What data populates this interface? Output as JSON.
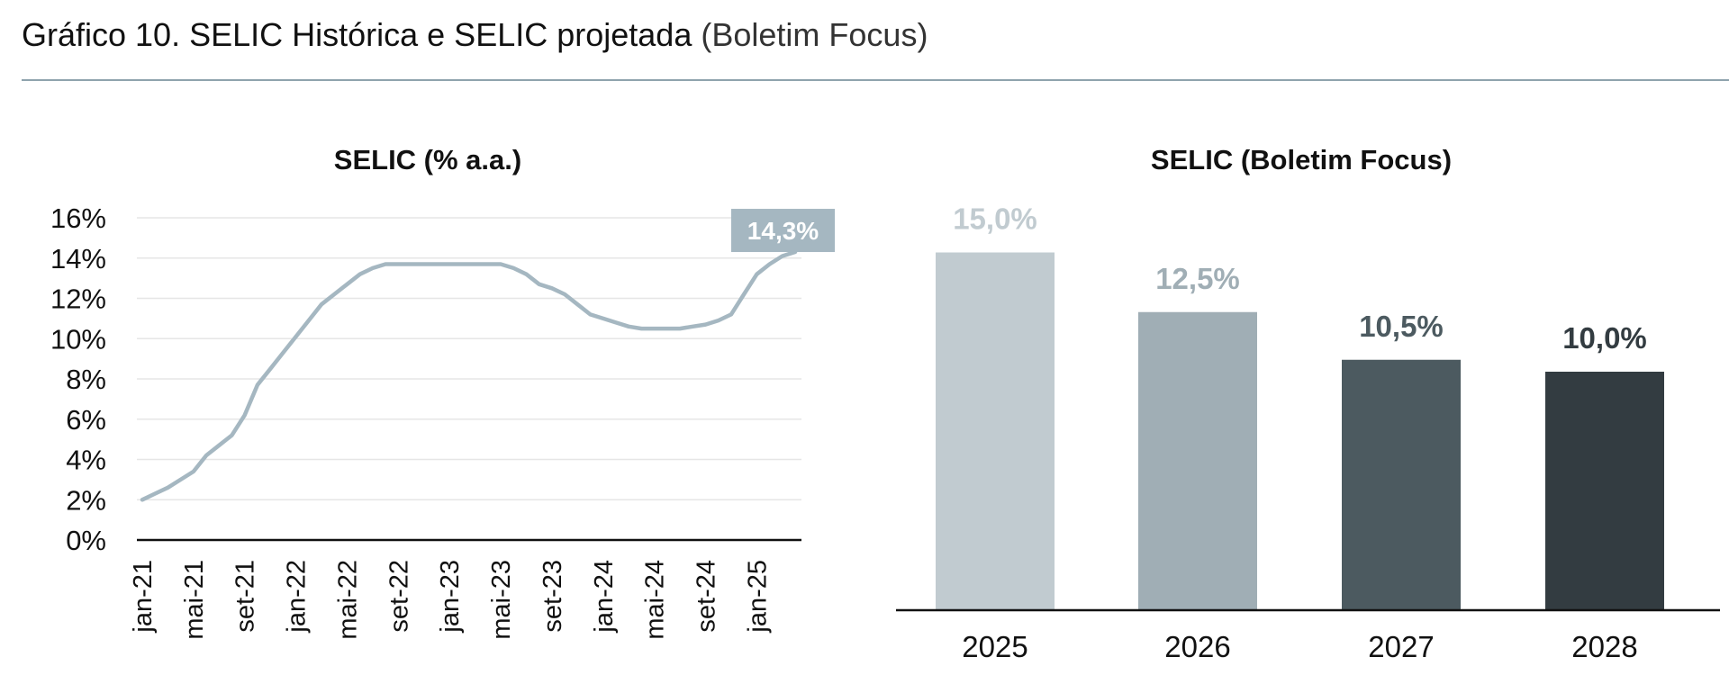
{
  "page": {
    "title_main": "Gráfico 10. SELIC Histórica e SELIC projetada",
    "title_sub": "(Boletim Focus)"
  },
  "colors": {
    "rule": "#8fa3ad",
    "line": "#a5b7c1",
    "callout": "#a5b7c1",
    "grid": "#e6e6e6",
    "bars": [
      "#c1cbd0",
      "#a0aeb5",
      "#4c5a60",
      "#333c41"
    ],
    "bar_labels": [
      "#c1cbd0",
      "#a0aeb5",
      "#4c5a60",
      "#333c41"
    ]
  },
  "chart_data": [
    {
      "type": "line",
      "title": "SELIC (% a.a.)",
      "xlabel": "",
      "ylabel": "",
      "ylim": [
        0,
        16
      ],
      "yticks": [
        "0%",
        "2%",
        "4%",
        "6%",
        "8%",
        "10%",
        "12%",
        "14%",
        "16%"
      ],
      "grid": true,
      "x_tick_labels": [
        "jan-21",
        "mai-21",
        "set-21",
        "jan-22",
        "mai-22",
        "set-22",
        "jan-23",
        "mai-23",
        "set-23",
        "jan-24",
        "mai-24",
        "set-24",
        "jan-25"
      ],
      "x": [
        "jan-21",
        "fev-21",
        "mar-21",
        "abr-21",
        "mai-21",
        "jun-21",
        "jul-21",
        "ago-21",
        "set-21",
        "out-21",
        "nov-21",
        "dez-21",
        "jan-22",
        "fev-22",
        "mar-22",
        "abr-22",
        "mai-22",
        "jun-22",
        "jul-22",
        "ago-22",
        "set-22",
        "out-22",
        "nov-22",
        "dez-22",
        "jan-23",
        "fev-23",
        "mar-23",
        "abr-23",
        "mai-23",
        "jun-23",
        "jul-23",
        "ago-23",
        "set-23",
        "out-23",
        "nov-23",
        "dez-23",
        "jan-24",
        "fev-24",
        "mar-24",
        "abr-24",
        "mai-24",
        "jun-24",
        "jul-24",
        "ago-24",
        "set-24",
        "out-24",
        "nov-24",
        "dez-24",
        "jan-25",
        "fev-25",
        "mar-25",
        "abr-25"
      ],
      "values": [
        2.0,
        2.3,
        2.6,
        3.0,
        3.4,
        4.2,
        4.7,
        5.2,
        6.2,
        7.7,
        8.5,
        9.3,
        10.1,
        10.9,
        11.7,
        12.2,
        12.7,
        13.2,
        13.5,
        13.7,
        13.7,
        13.7,
        13.7,
        13.7,
        13.7,
        13.7,
        13.7,
        13.7,
        13.7,
        13.5,
        13.2,
        12.7,
        12.5,
        12.2,
        11.7,
        11.2,
        11.0,
        10.8,
        10.6,
        10.5,
        10.5,
        10.5,
        10.5,
        10.6,
        10.7,
        10.9,
        11.2,
        12.2,
        13.2,
        13.7,
        14.1,
        14.3
      ],
      "callout": "14,3%"
    },
    {
      "type": "bar",
      "title": "SELIC (Boletim Focus)",
      "xlabel": "",
      "ylabel": "",
      "ylim": [
        0,
        16
      ],
      "grid": false,
      "categories": [
        "2025",
        "2026",
        "2027",
        "2028"
      ],
      "values": [
        15.0,
        12.5,
        10.5,
        10.0
      ],
      "labels": [
        "15,0%",
        "12,5%",
        "10,5%",
        "10,0%"
      ]
    }
  ]
}
